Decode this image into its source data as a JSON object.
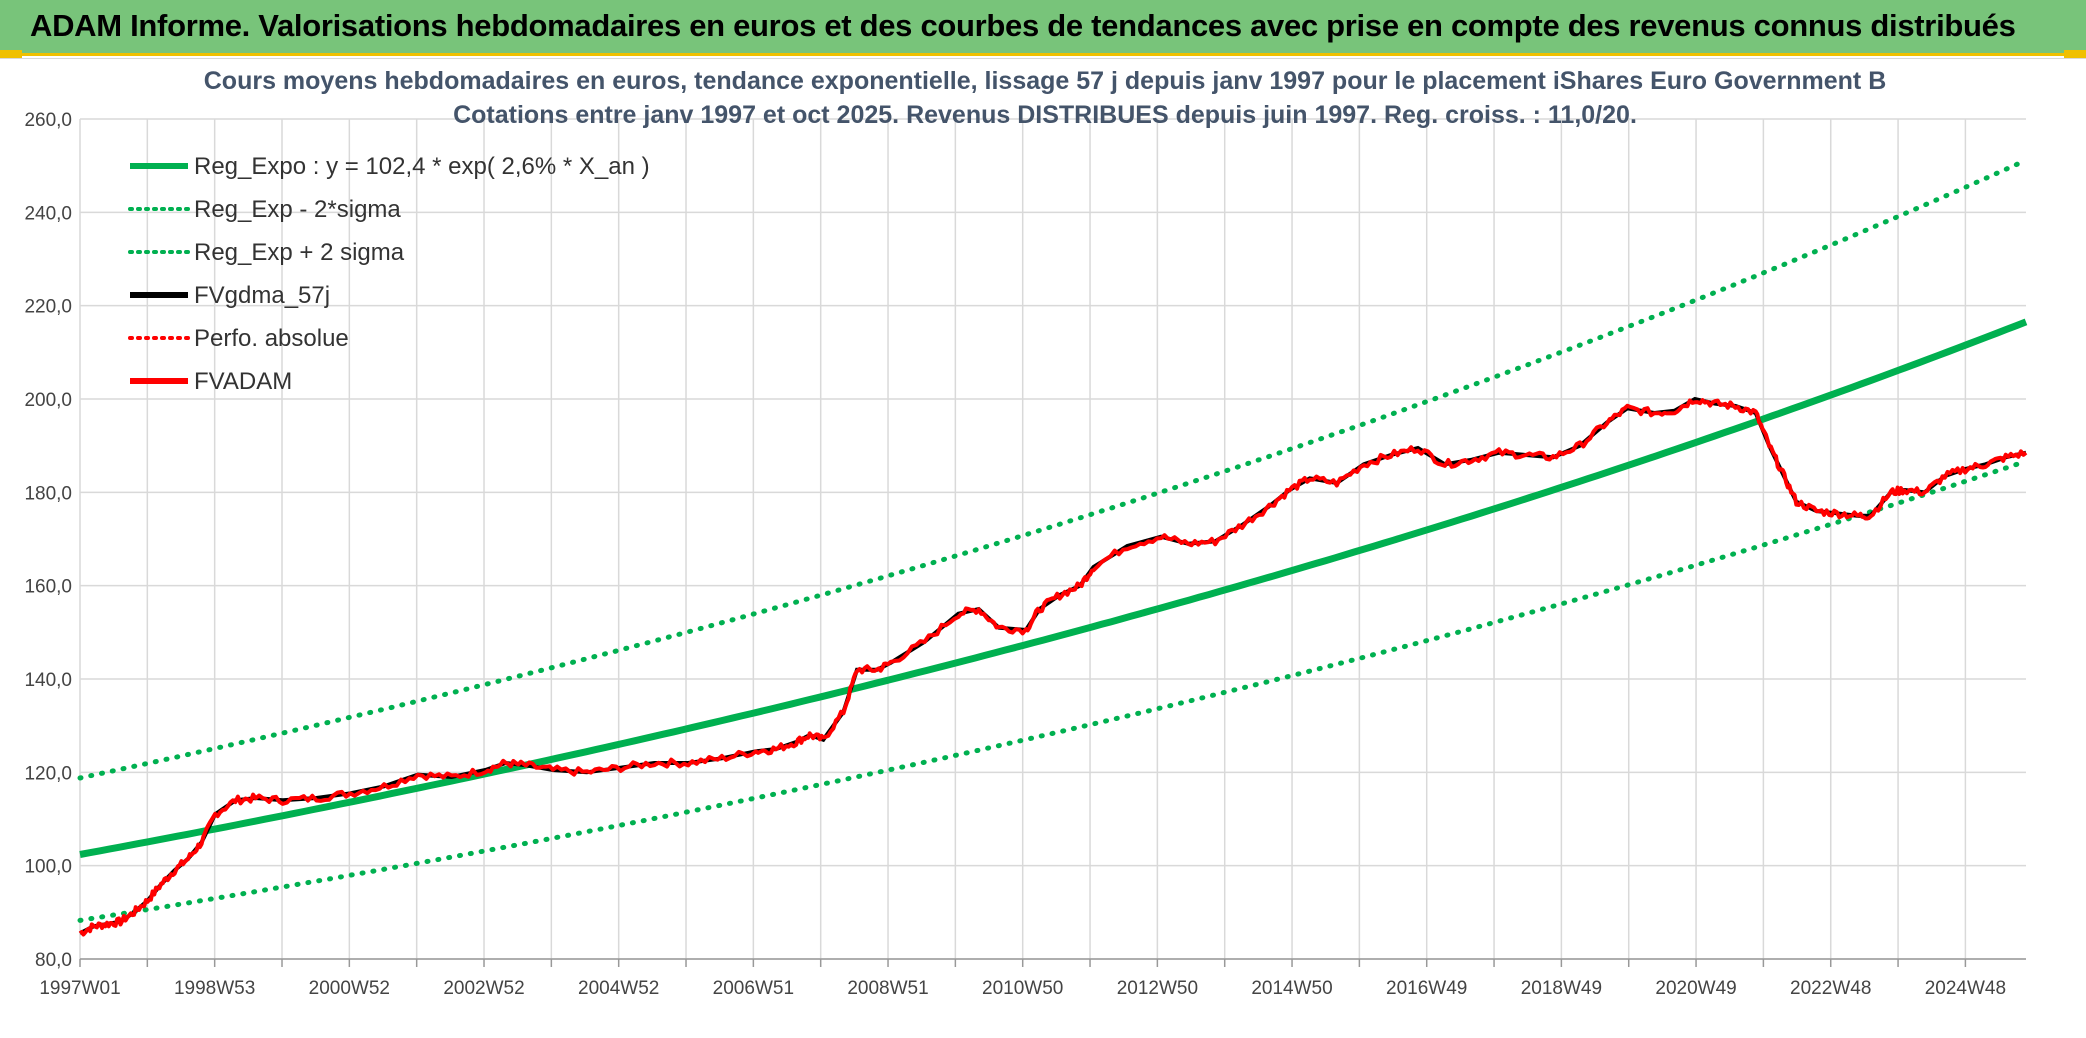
{
  "header": {
    "title": "ADAM Informe. Valorisations hebdomadaires en euros et des courbes de tendances avec prise en compte des revenus connus distribués"
  },
  "chart_data": {
    "type": "line",
    "title": "Cours moyens hebdomadaires en euros, tendance exponentielle, lissage 57 j depuis janv 1997 pour le placement iShares Euro Government B",
    "subtitle": "Cotations entre janv 1997 et oct 2025. Revenus DISTRIBUES depuis juin 1997. Reg. croiss. : 11,0/20.",
    "xlabel": "",
    "ylabel": "",
    "ylim": [
      80,
      260
    ],
    "y_ticks": [
      "80,0",
      "100,0",
      "120,0",
      "140,0",
      "160,0",
      "180,0",
      "200,0",
      "220,0",
      "240,0",
      "260,0"
    ],
    "x_ticks": [
      "1997W01",
      "1998W53",
      "2000W52",
      "2002W52",
      "2004W52",
      "2006W51",
      "2008W51",
      "2010W50",
      "2012W50",
      "2014W50",
      "2016W49",
      "2018W49",
      "2020W49",
      "2022W48",
      "2024W48"
    ],
    "x_range_years": [
      1997.0,
      2025.8
    ],
    "grid": true,
    "legend": [
      {
        "name": "Reg_Expo : y = 102,4 * exp( 2,6% *  X_an )",
        "color": "#00b050",
        "style": "solid"
      },
      {
        "name": "Reg_Exp - 2*sigma",
        "color": "#00b050",
        "style": "dotted"
      },
      {
        "name": "Reg_Exp + 2 sigma",
        "color": "#00b050",
        "style": "dotted"
      },
      {
        "name": "FVgdma_57j",
        "color": "#000000",
        "style": "solid"
      },
      {
        "name": "Perfo. absolue",
        "color": "#ff0000",
        "style": "dotted"
      },
      {
        "name": "FVADAM",
        "color": "#ff0000",
        "style": "solid"
      }
    ],
    "regression": {
      "a": 102.4,
      "rate": 0.026,
      "sigma_factor": 1.16
    },
    "series": [
      {
        "name": "FVADAM",
        "x": [
          1997.0,
          1997.2,
          1997.4,
          1997.6,
          1997.8,
          1998.0,
          1998.2,
          1998.4,
          1998.6,
          1998.8,
          1999.0,
          1999.3,
          1999.6,
          2000.0,
          2000.5,
          2001.0,
          2001.5,
          2002.0,
          2002.5,
          2003.0,
          2003.3,
          2003.6,
          2004.0,
          2004.5,
          2005.0,
          2005.5,
          2006.0,
          2006.5,
          2007.0,
          2007.3,
          2007.6,
          2007.8,
          2008.0,
          2008.3,
          2008.5,
          2008.8,
          2009.0,
          2009.5,
          2010.0,
          2010.3,
          2010.6,
          2011.0,
          2011.2,
          2011.5,
          2011.8,
          2012.0,
          2012.5,
          2013.0,
          2013.4,
          2013.8,
          2014.2,
          2014.6,
          2014.9,
          2015.2,
          2015.6,
          2016.0,
          2016.4,
          2016.8,
          2017.2,
          2017.6,
          2018.0,
          2018.4,
          2018.8,
          2019.2,
          2019.6,
          2019.9,
          2020.3,
          2020.6,
          2020.9,
          2021.2,
          2021.5,
          2021.8,
          2022.0,
          2022.2,
          2022.4,
          2022.7,
          2023.0,
          2023.3,
          2023.5,
          2023.8,
          2024.0,
          2024.3,
          2024.6,
          2024.9,
          2025.2,
          2025.5,
          2025.8
        ],
        "values": [
          85.5,
          87.0,
          87.5,
          88.0,
          90.0,
          92.5,
          96.0,
          99.0,
          101.5,
          105.0,
          111.0,
          114.0,
          114.5,
          114.0,
          114.5,
          115.5,
          117.0,
          119.5,
          119.0,
          120.5,
          122.0,
          121.5,
          120.5,
          120.0,
          121.0,
          122.0,
          122.0,
          123.0,
          124.5,
          125.0,
          126.5,
          128.0,
          127.0,
          133.0,
          142.0,
          142.0,
          143.5,
          148.0,
          154.0,
          155.0,
          151.0,
          150.5,
          155.0,
          158.0,
          160.0,
          164.0,
          168.5,
          170.5,
          169.0,
          169.5,
          173.0,
          177.0,
          180.5,
          183.0,
          182.0,
          186.0,
          188.0,
          189.5,
          186.0,
          187.0,
          188.5,
          188.0,
          187.5,
          190.0,
          195.0,
          198.0,
          197.0,
          197.5,
          200.0,
          199.0,
          198.5,
          197.0,
          190.0,
          184.0,
          178.0,
          176.0,
          175.5,
          175.0,
          175.0,
          180.0,
          180.5,
          180.0,
          183.5,
          185.0,
          186.0,
          187.5,
          188.5
        ]
      }
    ]
  }
}
